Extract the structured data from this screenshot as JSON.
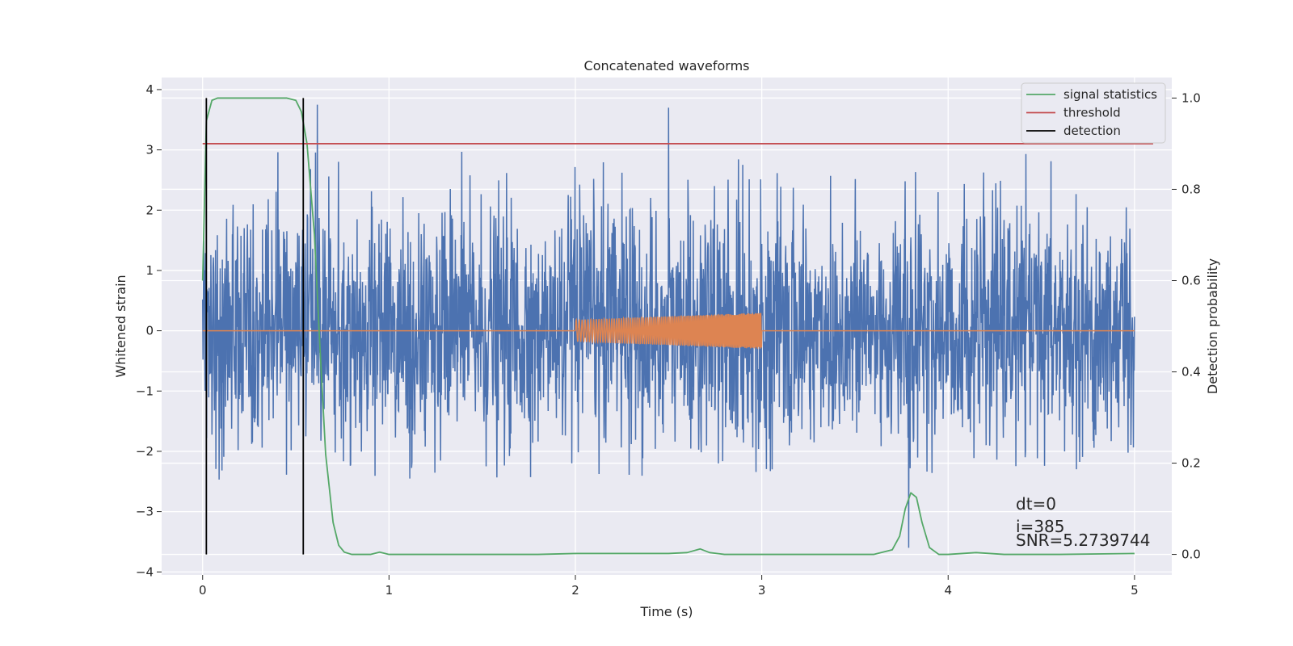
{
  "chart_data": {
    "type": "line",
    "title": "Concatenated waveforms",
    "xlabel": "Time (s)",
    "ylabel": "Whitened strain",
    "y2label": "Detection probability",
    "xlim": [
      -0.22,
      5.2
    ],
    "ylim": [
      -4.05,
      4.2
    ],
    "y2lim": [
      -0.045,
      1.045
    ],
    "xticks": [
      0,
      1,
      2,
      3,
      4,
      5
    ],
    "yticks": [
      -4,
      -3,
      -2,
      -1,
      0,
      1,
      2,
      3,
      4
    ],
    "y2ticks": [
      0.0,
      0.2,
      0.4,
      0.6,
      0.8,
      1.0
    ],
    "grid": true,
    "legend_position": "top-right",
    "noise": {
      "x_start": 0,
      "x_end": 5,
      "color": "#4c72b0",
      "typical_range": [
        -2.5,
        3.1
      ],
      "max": 3.75,
      "min": -3.6
    },
    "injected_signal": {
      "x_start": 2.0,
      "x_end": 3.0,
      "amp_start": 0.18,
      "amp_end": 0.3,
      "color": "#dd8452"
    },
    "series": [
      {
        "name": "signal statistics",
        "color": "#55a868",
        "axis": "right",
        "x": [
          0,
          0.02,
          0.05,
          0.08,
          0.1,
          0.15,
          0.3,
          0.45,
          0.5,
          0.53,
          0.56,
          0.6,
          0.63,
          0.66,
          0.7,
          0.73,
          0.76,
          0.8,
          0.9,
          0.95,
          1.0,
          1.2,
          1.5,
          1.8,
          2.0,
          2.2,
          2.5,
          2.6,
          2.67,
          2.72,
          2.8,
          3.0,
          3.3,
          3.6,
          3.7,
          3.74,
          3.77,
          3.8,
          3.83,
          3.86,
          3.9,
          3.95,
          4.0,
          4.15,
          4.3,
          4.6,
          5.0
        ],
        "y": [
          0.6,
          0.95,
          0.995,
          1.0,
          1.0,
          1.0,
          1.0,
          1.0,
          0.995,
          0.97,
          0.9,
          0.7,
          0.45,
          0.22,
          0.07,
          0.02,
          0.005,
          0.0,
          0.0,
          0.005,
          0.0,
          0.0,
          0.0,
          0.0,
          0.002,
          0.002,
          0.002,
          0.004,
          0.012,
          0.004,
          0.0,
          0.0,
          0.0,
          0.0,
          0.01,
          0.04,
          0.1,
          0.135,
          0.125,
          0.07,
          0.015,
          0.0,
          0.0,
          0.004,
          0.0,
          0.0,
          0.002
        ]
      },
      {
        "name": "threshold",
        "color": "#c44e52",
        "axis": "right",
        "x": [
          0,
          5.1
        ],
        "y": [
          0.9,
          0.9
        ]
      },
      {
        "name": "detection",
        "color": "#000000",
        "axis": "right",
        "verticals": [
          0.02,
          0.54
        ],
        "y": [
          0.0,
          1.0
        ]
      }
    ],
    "annotations": [
      "dt=0",
      "i=385",
      "SNR=5.2739744"
    ]
  }
}
